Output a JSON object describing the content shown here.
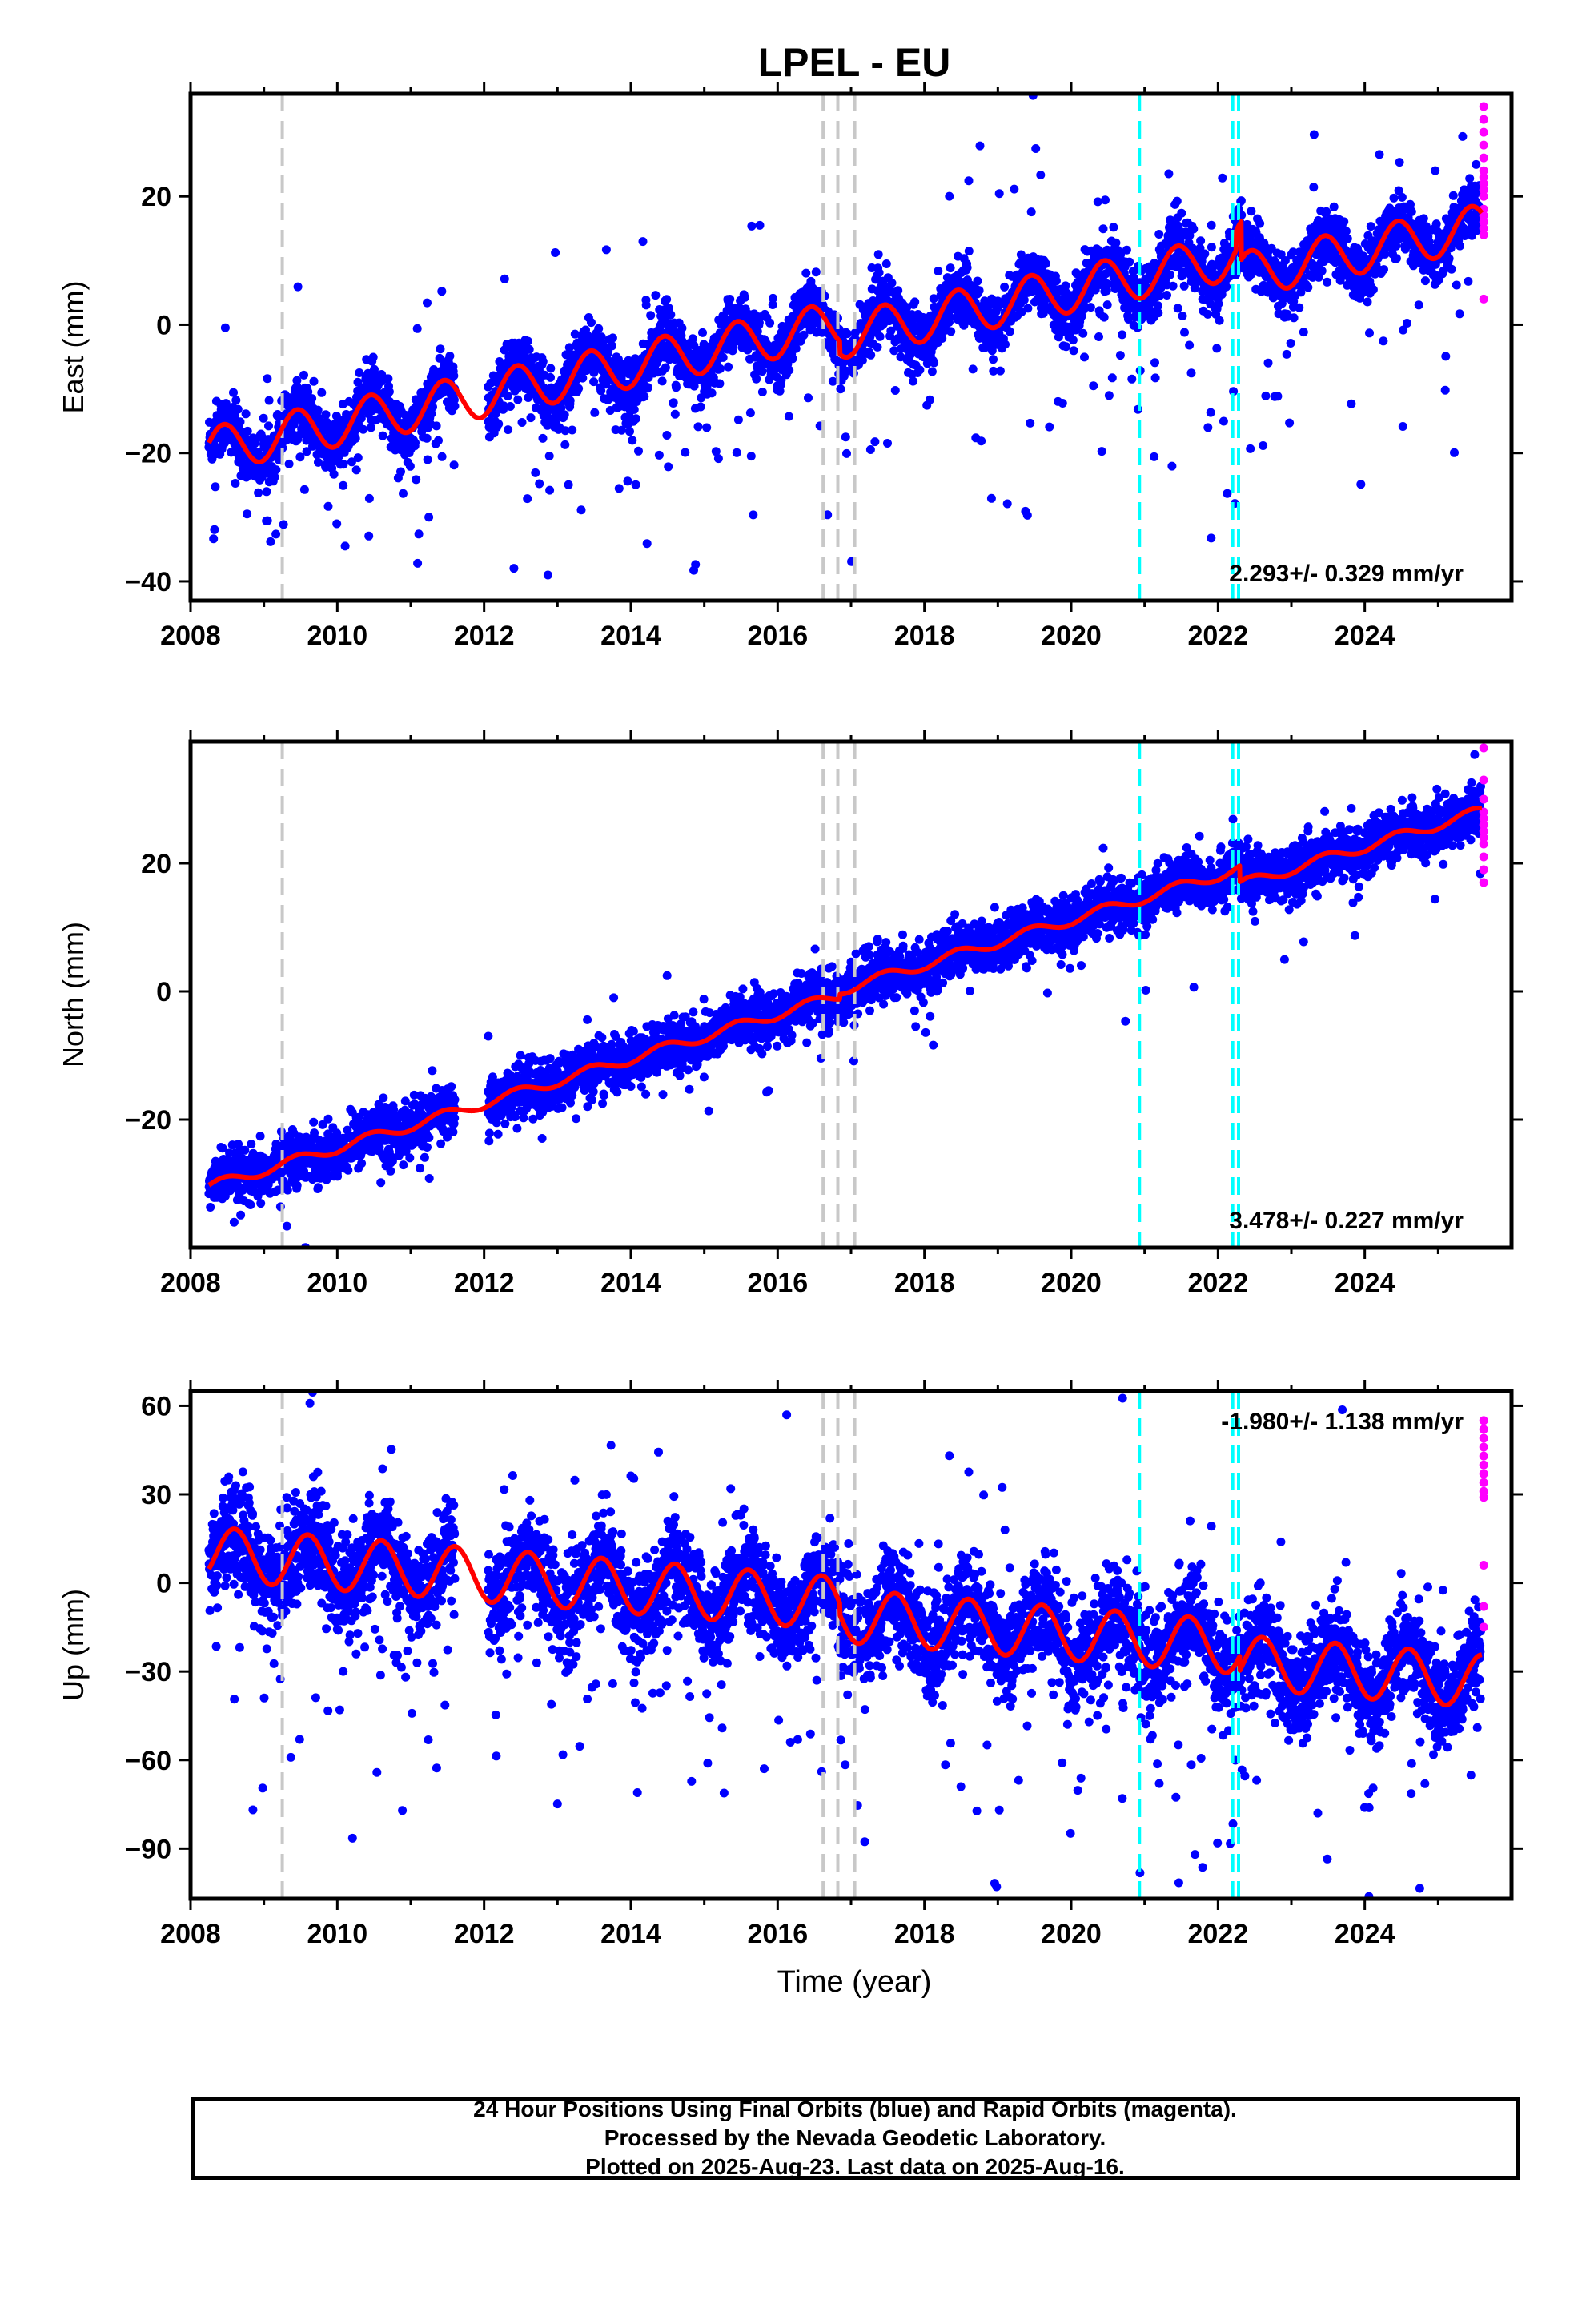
{
  "title": "LPEL - EU",
  "xlabel": "Time (year)",
  "x_ticks": [
    2008,
    2010,
    2012,
    2014,
    2016,
    2018,
    2020,
    2022,
    2024
  ],
  "colors": {
    "final_orbits": "#0000ff",
    "rapid_orbits": "#ff00ff",
    "model": "#ff0000",
    "equipment_change": "#c8c8c8",
    "earthquake": "#00ffff"
  },
  "vlines": {
    "gray": [
      2009.25,
      2016.62,
      2016.82,
      2017.05
    ],
    "cyan": [
      2020.93,
      2022.2,
      2022.28
    ]
  },
  "caption": {
    "line1": "24 Hour Positions Using Final Orbits (blue) and Rapid Orbits (magenta).",
    "line2": "Processed by the Nevada Geodetic Laboratory.",
    "line3": "Plotted on 2025-Aug-23. Last data on 2025-Aug-16."
  },
  "chart_data": [
    {
      "type": "scatter",
      "ylabel": "East (mm)",
      "y_ticks": [
        -40,
        -20,
        0,
        20
      ],
      "xlim": [
        2008.0,
        2026.0
      ],
      "ylim": [
        -43,
        36
      ],
      "rate_label": "2.293+/- 0.329 mm/yr",
      "rate_position": "bottom-right",
      "model": {
        "start": 2008.25,
        "end": 2025.6,
        "intercept": -19.5,
        "slope": 2.293,
        "annual_amplitude": 3.5,
        "peak_phase": 0.45,
        "offsets": [
          {
            "t": 2016.85,
            "dy": -2.0
          },
          {
            "t": 2022.25,
            "dy": 3.0
          },
          {
            "t": 2022.32,
            "dy": -6.0
          }
        ]
      },
      "scatter": {
        "noise": 2.2,
        "outlier_rate": 0.06,
        "outlier_spread": 14
      },
      "rapid_points": [
        34,
        32,
        30,
        28,
        26,
        24,
        23,
        22,
        21,
        20,
        18,
        17,
        16,
        15,
        14,
        4
      ]
    },
    {
      "type": "scatter",
      "ylabel": "North (mm)",
      "y_ticks": [
        -20,
        0,
        20
      ],
      "xlim": [
        2008.0,
        2026.0
      ],
      "ylim": [
        -40,
        39
      ],
      "rate_label": "3.478+/- 0.227 mm/yr",
      "rate_position": "bottom-right",
      "model": {
        "start": 2008.25,
        "end": 2025.6,
        "intercept": -30.5,
        "slope": 3.478,
        "annual_amplitude": 0.8,
        "peak_phase": 0.45,
        "offsets": [
          {
            "t": 2016.85,
            "dy": 0.8
          },
          {
            "t": 2022.3,
            "dy": -2.5
          }
        ]
      },
      "scatter": {
        "noise": 2.0,
        "outlier_rate": 0.02,
        "outlier_spread": 6
      },
      "rapid_points": [
        38,
        33,
        30,
        28,
        27,
        26,
        25,
        24,
        23,
        21,
        19,
        17
      ]
    },
    {
      "type": "scatter",
      "ylabel": "Up (mm)",
      "y_ticks": [
        -90,
        -60,
        -30,
        0,
        30,
        60
      ],
      "xlim": [
        2008.0,
        2026.0
      ],
      "ylim": [
        -107,
        65
      ],
      "rate_label": "-1.980+/- 1.138 mm/yr",
      "rate_position": "top-right",
      "model": {
        "start": 2008.25,
        "end": 2025.6,
        "intercept": 10.0,
        "slope": -1.98,
        "annual_amplitude": 9.0,
        "peak_phase": 0.6,
        "offsets": [
          {
            "t": 2016.85,
            "dy": -4.0
          },
          {
            "t": 2022.3,
            "dy": -5.0
          }
        ]
      },
      "scatter": {
        "noise": 8.0,
        "outlier_rate": 0.07,
        "outlier_spread": 30
      },
      "rapid_points": [
        55,
        52,
        49,
        46,
        43,
        40,
        37,
        34,
        31,
        29,
        6,
        -8,
        -15
      ]
    }
  ]
}
